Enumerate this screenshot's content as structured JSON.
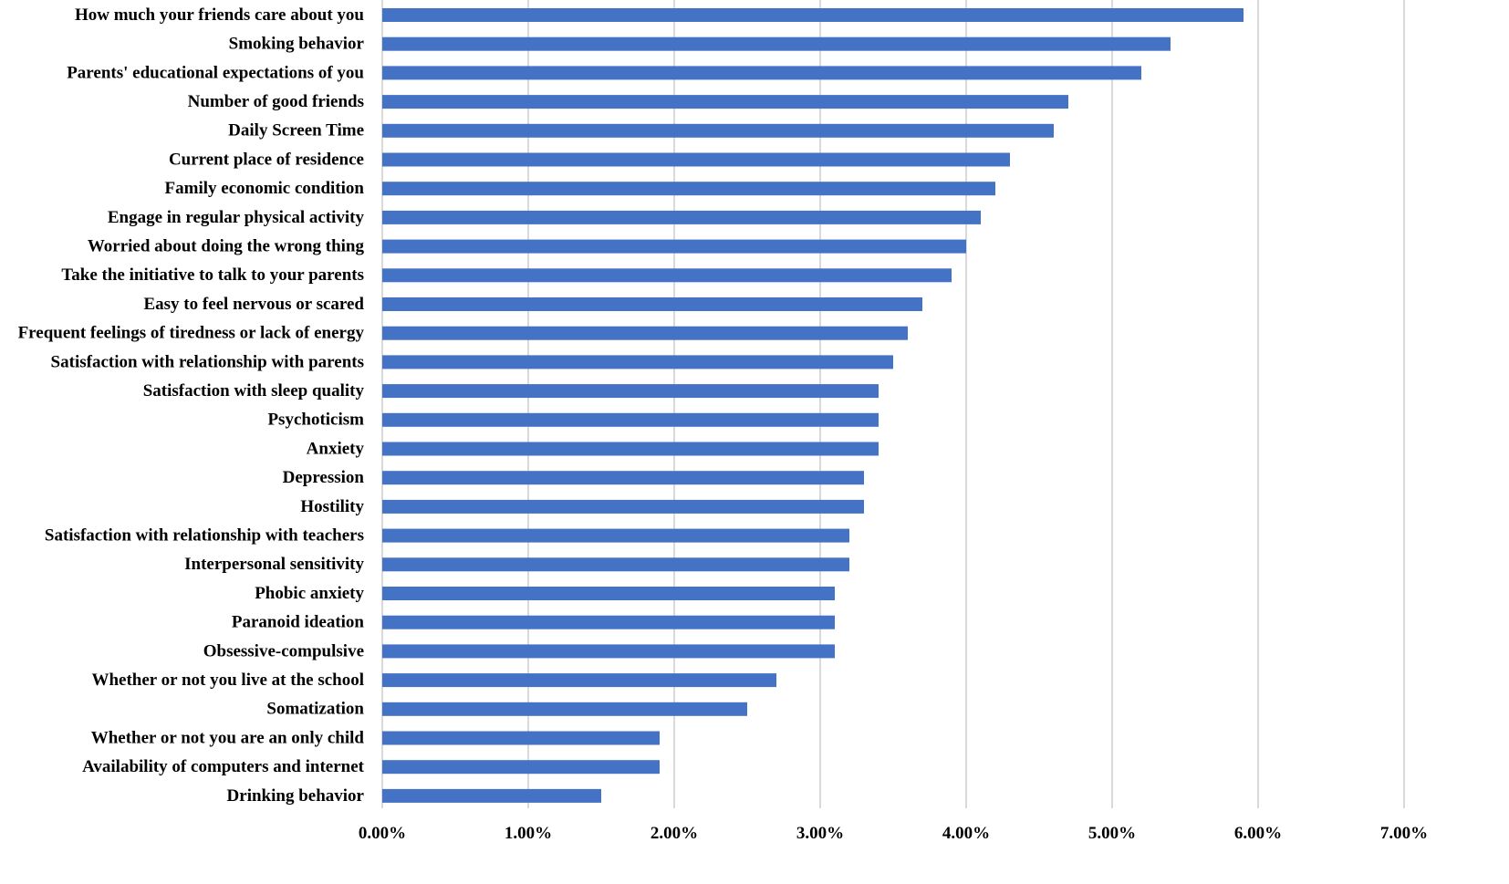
{
  "chart_data": {
    "type": "bar",
    "orientation": "horizontal",
    "title": "",
    "xlabel": "",
    "ylabel": "",
    "categories": [
      "How much your friends care about you",
      "Smoking behavior",
      "Parents' educational expectations of you",
      "Number of good friends",
      "Daily Screen Time",
      "Current place of residence",
      "Family economic condition",
      "Engage in regular physical activity",
      "Worried about doing the wrong thing",
      "Take the initiative to talk to your parents",
      "Easy to feel nervous or scared",
      "Frequent feelings of tiredness or lack of energy",
      "Satisfaction with relationship with parents",
      "Satisfaction with sleep quality",
      "Psychoticism",
      "Anxiety",
      "Depression",
      "Hostility",
      "Satisfaction with relationship with teachers",
      "Interpersonal sensitivity",
      "Phobic anxiety",
      "Paranoid ideation",
      "Obsessive-compulsive",
      "Whether or not you live at the school",
      "Somatization",
      "Whether or not you are an only child",
      "Availability of computers and internet",
      "Drinking behavior"
    ],
    "values": [
      5.9,
      5.4,
      5.2,
      4.7,
      4.6,
      4.3,
      4.2,
      4.1,
      4.0,
      3.9,
      3.7,
      3.6,
      3.5,
      3.4,
      3.4,
      3.4,
      3.3,
      3.3,
      3.2,
      3.2,
      3.1,
      3.1,
      3.1,
      2.7,
      2.5,
      1.9,
      1.9,
      1.5
    ],
    "value_unit": "%",
    "xlim": [
      0,
      7
    ],
    "xticks": [
      0,
      1,
      2,
      3,
      4,
      5,
      6,
      7
    ],
    "xtick_labels": [
      "0.00%",
      "1.00%",
      "2.00%",
      "3.00%",
      "4.00%",
      "5.00%",
      "6.00%",
      "7.00%"
    ],
    "grid": "vertical",
    "legend": "none",
    "bar_color": "#4472C4",
    "grid_color": "#D9D9D9"
  }
}
